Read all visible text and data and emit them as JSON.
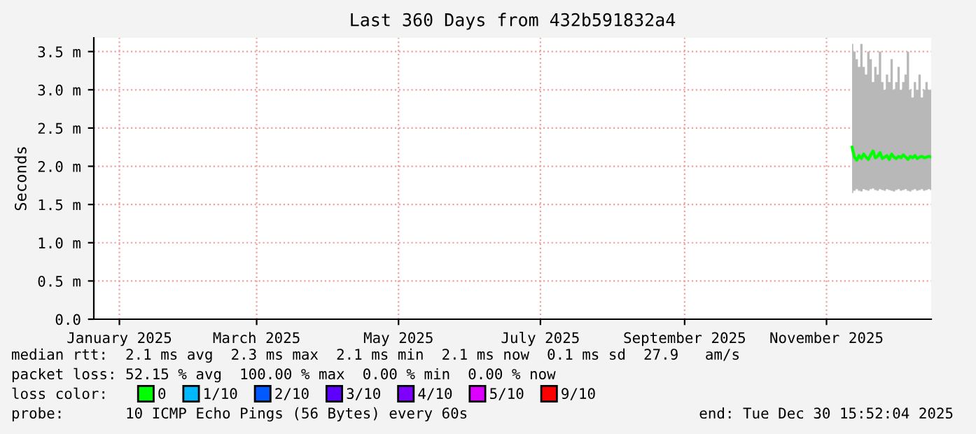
{
  "chart_data": {
    "type": "line",
    "title": "Last 360 Days from 432b591832a4",
    "ylabel": "Seconds",
    "x": [
      "2025-11-26",
      "2025-11-27",
      "2025-11-28",
      "2025-11-29",
      "2025-11-30",
      "2025-12-01",
      "2025-12-02",
      "2025-12-03",
      "2025-12-04",
      "2025-12-05",
      "2025-12-06",
      "2025-12-07",
      "2025-12-08",
      "2025-12-09",
      "2025-12-10",
      "2025-12-11",
      "2025-12-12",
      "2025-12-13",
      "2025-12-14",
      "2025-12-15",
      "2025-12-16",
      "2025-12-17",
      "2025-12-18",
      "2025-12-19",
      "2025-12-20",
      "2025-12-21",
      "2025-12-22",
      "2025-12-23",
      "2025-12-24",
      "2025-12-25",
      "2025-12-26",
      "2025-12-27",
      "2025-12-28",
      "2025-12-29",
      "2025-12-30"
    ],
    "series": [
      {
        "name": "0",
        "color": "#00ff00",
        "values": [
          2.25,
          2.12,
          2.08,
          2.14,
          2.1,
          2.16,
          2.12,
          2.09,
          2.15,
          2.2,
          2.11,
          2.13,
          2.18,
          2.1,
          2.12,
          2.14,
          2.09,
          2.16,
          2.12,
          2.1,
          2.13,
          2.11,
          2.15,
          2.12,
          2.09,
          2.13,
          2.11,
          2.14,
          2.1,
          2.12,
          2.13,
          2.11,
          2.12,
          2.13,
          2.12
        ],
        "lower": [
          1.65,
          1.68,
          1.7,
          1.68,
          1.67,
          1.7,
          1.69,
          1.68,
          1.7,
          1.71,
          1.69,
          1.68,
          1.7,
          1.69,
          1.68,
          1.7,
          1.69,
          1.68,
          1.67,
          1.69,
          1.7,
          1.68,
          1.69,
          1.7,
          1.68,
          1.67,
          1.69,
          1.7,
          1.68,
          1.69,
          1.7,
          1.68,
          1.69,
          1.7,
          1.69
        ],
        "upper": [
          3.6,
          3.5,
          3.4,
          3.3,
          3.6,
          3.3,
          3.2,
          3.5,
          3.4,
          3.1,
          3.3,
          3.2,
          3.5,
          3.1,
          3.0,
          3.2,
          3.1,
          3.4,
          3.0,
          3.1,
          3.3,
          3.0,
          3.1,
          3.2,
          3.5,
          3.0,
          2.9,
          3.1,
          3.0,
          3.2,
          2.9,
          3.0,
          3.1,
          3.0,
          3.0
        ]
      },
      {
        "name": "1/10",
        "color": "#00b8ff",
        "values": [
          null,
          null,
          null,
          null,
          null,
          null,
          null,
          null,
          null,
          null,
          null,
          null,
          null,
          null,
          null,
          null,
          null,
          null,
          null,
          null,
          null,
          null,
          null,
          null,
          null,
          null,
          null,
          null,
          null,
          null,
          null,
          null,
          null,
          null,
          null
        ]
      },
      {
        "name": "2/10",
        "color": "#0059ff",
        "values": [
          null,
          null,
          null,
          null,
          null,
          null,
          null,
          null,
          null,
          null,
          null,
          null,
          null,
          null,
          null,
          null,
          null,
          null,
          null,
          null,
          null,
          null,
          null,
          null,
          null,
          null,
          null,
          null,
          null,
          null,
          null,
          null,
          null,
          null,
          null
        ]
      },
      {
        "name": "3/10",
        "color": "#5e00ff",
        "values": [
          null,
          null,
          null,
          null,
          null,
          null,
          null,
          null,
          null,
          null,
          null,
          null,
          null,
          null,
          null,
          null,
          null,
          null,
          null,
          null,
          null,
          null,
          null,
          null,
          null,
          null,
          null,
          null,
          null,
          null,
          null,
          null,
          null,
          null,
          null
        ]
      },
      {
        "name": "4/10",
        "color": "#7e00ff",
        "values": [
          null,
          null,
          null,
          null,
          null,
          null,
          null,
          null,
          null,
          null,
          null,
          null,
          null,
          null,
          null,
          null,
          null,
          null,
          null,
          null,
          null,
          null,
          null,
          null,
          null,
          null,
          null,
          null,
          null,
          null,
          null,
          null,
          null,
          null,
          null
        ]
      },
      {
        "name": "5/10",
        "color": "#dd00ff",
        "values": [
          null,
          null,
          null,
          null,
          null,
          null,
          null,
          null,
          null,
          null,
          null,
          null,
          null,
          null,
          null,
          null,
          null,
          null,
          null,
          null,
          null,
          null,
          null,
          null,
          null,
          null,
          null,
          null,
          null,
          null,
          null,
          null,
          null,
          null,
          null
        ]
      },
      {
        "name": "9/10",
        "color": "#ff0000",
        "values": [
          null,
          null,
          null,
          null,
          null,
          null,
          null,
          null,
          null,
          null,
          null,
          null,
          null,
          null,
          null,
          null,
          null,
          null,
          null,
          null,
          null,
          null,
          null,
          null,
          null,
          null,
          null,
          null,
          null,
          null,
          null,
          null,
          null,
          null,
          null
        ]
      }
    ],
    "xlim": [
      "2025-01-04",
      "2025-12-30"
    ],
    "xticks": [
      {
        "value": "2025-01-15",
        "label": "January 2025"
      },
      {
        "value": "2025-03-15",
        "label": "March 2025"
      },
      {
        "value": "2025-05-15",
        "label": "May 2025"
      },
      {
        "value": "2025-07-15",
        "label": "July 2025"
      },
      {
        "value": "2025-09-15",
        "label": "September 2025"
      },
      {
        "value": "2025-11-15",
        "label": "November 2025"
      }
    ],
    "ylim": [
      0,
      3.68
    ],
    "yticks": [
      {
        "value": 0,
        "label": "0.0"
      },
      {
        "value": 0.5,
        "label": "0.5 m"
      },
      {
        "value": 1.0,
        "label": "1.0 m"
      },
      {
        "value": 1.5,
        "label": "1.5 m"
      },
      {
        "value": 2.0,
        "label": "2.0 m"
      },
      {
        "value": 2.5,
        "label": "2.5 m"
      },
      {
        "value": 3.0,
        "label": "3.0 m"
      },
      {
        "value": 3.5,
        "label": "3.5 m"
      }
    ],
    "grid": true,
    "legend": "bottom",
    "legend_title": "loss color:",
    "line_style": "solid",
    "marker": "none",
    "annotations": [
      "median rtt:  2.1 ms avg  2.3 ms max  2.1 ms min  2.1 ms now  0.1 ms sd  27.9   am/s",
      "packet loss: 52.15 % avg  100.00 % max  0.00 % min  0.00 % now",
      "probe:       10 ICMP Echo Pings (56 Bytes) every 60s",
      "end: Tue Dec 30 15:52:04 2025"
    ]
  }
}
